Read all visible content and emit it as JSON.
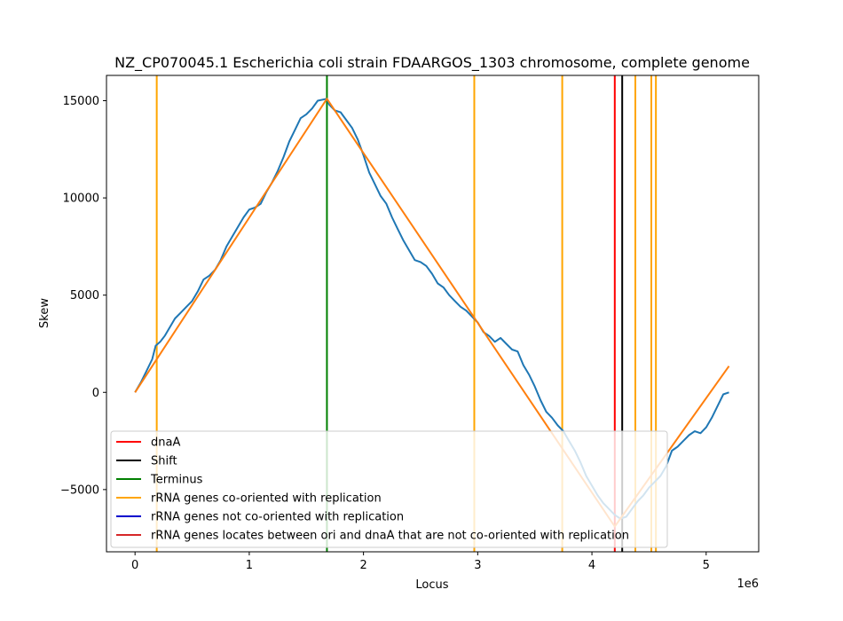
{
  "chart_data": {
    "type": "line",
    "title": "NZ_CP070045.1 Escherichia coli strain FDAARGOS_1303 chromosome, complete genome",
    "xlabel": "Locus",
    "ylabel": "Skew",
    "x_offset_label": "1e6",
    "xlim": [
      -250000,
      5460000
    ],
    "ylim": [
      -8200,
      16300
    ],
    "x_ticks": [
      0,
      1000000,
      2000000,
      3000000,
      4000000,
      5000000
    ],
    "x_tick_labels": [
      "0",
      "1",
      "2",
      "3",
      "4",
      "5"
    ],
    "y_ticks": [
      -5000,
      0,
      5000,
      10000,
      15000
    ],
    "y_tick_labels": [
      "−5000",
      "0",
      "5000",
      "10000",
      "15000"
    ],
    "legend_position": "lower-left",
    "series": [
      {
        "color": "#1f77b4",
        "points": [
          [
            0,
            0
          ],
          [
            50000,
            500
          ],
          [
            100000,
            1100
          ],
          [
            150000,
            1700
          ],
          [
            180000,
            2400
          ],
          [
            220000,
            2600
          ],
          [
            260000,
            2900
          ],
          [
            300000,
            3300
          ],
          [
            350000,
            3800
          ],
          [
            400000,
            4100
          ],
          [
            450000,
            4400
          ],
          [
            500000,
            4700
          ],
          [
            550000,
            5200
          ],
          [
            600000,
            5800
          ],
          [
            650000,
            6000
          ],
          [
            700000,
            6300
          ],
          [
            750000,
            6800
          ],
          [
            800000,
            7500
          ],
          [
            850000,
            8000
          ],
          [
            900000,
            8500
          ],
          [
            950000,
            9000
          ],
          [
            1000000,
            9400
          ],
          [
            1050000,
            9500
          ],
          [
            1100000,
            9700
          ],
          [
            1150000,
            10300
          ],
          [
            1200000,
            10800
          ],
          [
            1250000,
            11400
          ],
          [
            1300000,
            12100
          ],
          [
            1350000,
            12900
          ],
          [
            1400000,
            13500
          ],
          [
            1450000,
            14100
          ],
          [
            1500000,
            14300
          ],
          [
            1550000,
            14600
          ],
          [
            1600000,
            15000
          ],
          [
            1680000,
            15100
          ],
          [
            1700000,
            14800
          ],
          [
            1750000,
            14500
          ],
          [
            1800000,
            14400
          ],
          [
            1850000,
            14000
          ],
          [
            1900000,
            13600
          ],
          [
            1950000,
            13000
          ],
          [
            2000000,
            12200
          ],
          [
            2050000,
            11300
          ],
          [
            2100000,
            10700
          ],
          [
            2150000,
            10100
          ],
          [
            2200000,
            9700
          ],
          [
            2250000,
            9000
          ],
          [
            2300000,
            8400
          ],
          [
            2350000,
            7800
          ],
          [
            2400000,
            7300
          ],
          [
            2450000,
            6800
          ],
          [
            2500000,
            6700
          ],
          [
            2550000,
            6500
          ],
          [
            2600000,
            6100
          ],
          [
            2650000,
            5600
          ],
          [
            2700000,
            5400
          ],
          [
            2750000,
            5000
          ],
          [
            2800000,
            4700
          ],
          [
            2850000,
            4400
          ],
          [
            2900000,
            4200
          ],
          [
            2950000,
            3900
          ],
          [
            3000000,
            3600
          ],
          [
            3050000,
            3100
          ],
          [
            3100000,
            2900
          ],
          [
            3150000,
            2600
          ],
          [
            3200000,
            2800
          ],
          [
            3250000,
            2500
          ],
          [
            3300000,
            2200
          ],
          [
            3350000,
            2100
          ],
          [
            3400000,
            1400
          ],
          [
            3450000,
            900
          ],
          [
            3500000,
            300
          ],
          [
            3550000,
            -400
          ],
          [
            3600000,
            -1000
          ],
          [
            3650000,
            -1300
          ],
          [
            3700000,
            -1700
          ],
          [
            3750000,
            -2000
          ],
          [
            3800000,
            -2500
          ],
          [
            3850000,
            -3000
          ],
          [
            3900000,
            -3600
          ],
          [
            3950000,
            -4300
          ],
          [
            4000000,
            -4800
          ],
          [
            4050000,
            -5300
          ],
          [
            4100000,
            -5700
          ],
          [
            4150000,
            -6000
          ],
          [
            4200000,
            -6300
          ],
          [
            4250000,
            -6500
          ],
          [
            4300000,
            -6400
          ],
          [
            4350000,
            -6000
          ],
          [
            4400000,
            -5600
          ],
          [
            4450000,
            -5300
          ],
          [
            4500000,
            -4900
          ],
          [
            4550000,
            -4600
          ],
          [
            4600000,
            -4300
          ],
          [
            4650000,
            -3800
          ],
          [
            4700000,
            -3000
          ],
          [
            4750000,
            -2800
          ],
          [
            4800000,
            -2500
          ],
          [
            4850000,
            -2200
          ],
          [
            4900000,
            -2000
          ],
          [
            4950000,
            -2100
          ],
          [
            5000000,
            -1800
          ],
          [
            5050000,
            -1300
          ],
          [
            5100000,
            -700
          ],
          [
            5150000,
            -100
          ],
          [
            5200000,
            0
          ]
        ]
      },
      {
        "color": "#ff7f0e",
        "points": [
          [
            0,
            0
          ],
          [
            1680000,
            15100
          ],
          [
            4200000,
            -6900
          ],
          [
            5200000,
            1350
          ]
        ]
      }
    ],
    "vertical_lines": [
      {
        "x": 4200000,
        "color": "#ff0000"
      },
      {
        "x": 4265000,
        "color": "#000000"
      },
      {
        "x": 1680000,
        "color": "#008000"
      },
      {
        "x": 190000,
        "color": "#ffa500"
      },
      {
        "x": 2970000,
        "color": "#ffa500"
      },
      {
        "x": 3740000,
        "color": "#ffa500"
      },
      {
        "x": 4380000,
        "color": "#ffa500"
      },
      {
        "x": 4520000,
        "color": "#ffa500"
      },
      {
        "x": 4560000,
        "color": "#ffa500"
      }
    ],
    "legend": [
      {
        "label": "dnaA",
        "color": "#ff0000"
      },
      {
        "label": "Shift",
        "color": "#000000"
      },
      {
        "label": "Terminus",
        "color": "#008000"
      },
      {
        "label": "rRNA genes co-oriented with replication",
        "color": "#ffa500"
      },
      {
        "label": "rRNA genes not co-oriented with replication",
        "color": "#0000cd"
      },
      {
        "label": "rRNA genes locates between ori and dnaA that are not co-oriented with replication",
        "color": "#d62728"
      }
    ]
  }
}
